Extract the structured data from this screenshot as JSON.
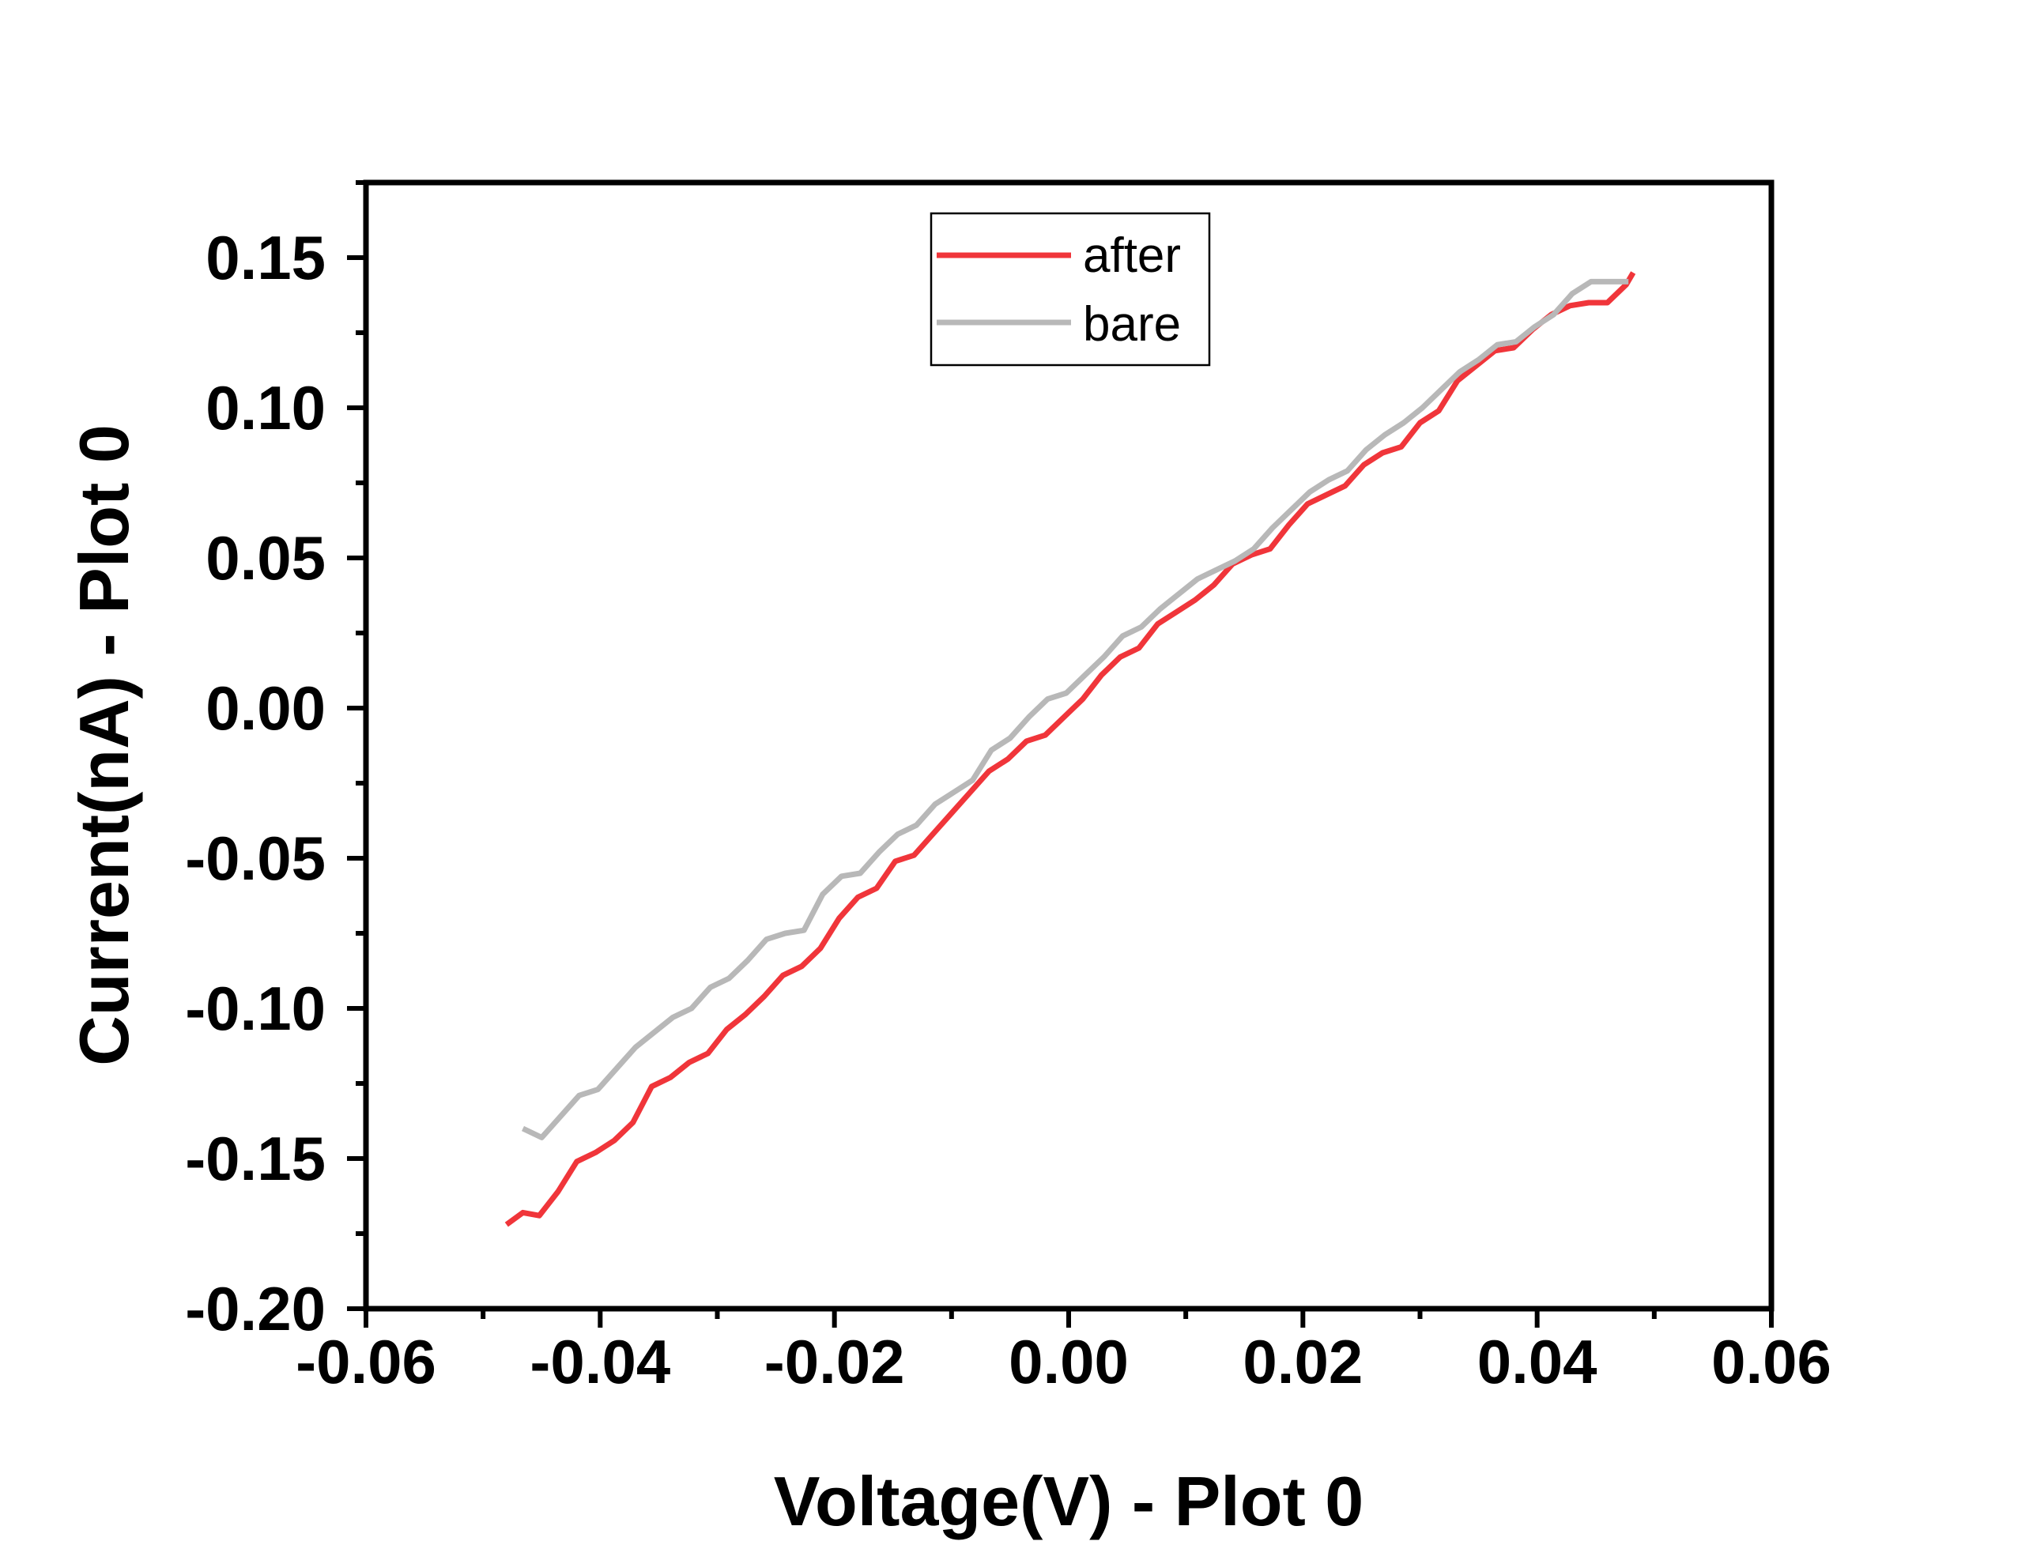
{
  "chart_data": {
    "type": "line",
    "title": "",
    "xlabel": "Voltage(V) - Plot 0",
    "ylabel": "Current(nA) - Plot 0",
    "xlim": [
      -0.06,
      0.06
    ],
    "ylim": [
      -0.2,
      0.175
    ],
    "x_ticks": [
      -0.06,
      -0.04,
      -0.02,
      0.0,
      0.02,
      0.04,
      0.06
    ],
    "x_tick_labels": [
      "-0.06",
      "-0.04",
      "-0.02",
      "0.00",
      "0.02",
      "0.04",
      "0.06"
    ],
    "y_ticks": [
      -0.2,
      -0.15,
      -0.1,
      -0.05,
      0.0,
      0.05,
      0.1,
      0.15
    ],
    "y_tick_labels": [
      "-0.20",
      "-0.15",
      "-0.10",
      "-0.05",
      "0.00",
      "0.05",
      "0.10",
      "0.15"
    ],
    "x_minor_step": 0.01,
    "y_minor_step": 0.025,
    "grid": false,
    "legend_position": "top-center",
    "series": [
      {
        "name": "after",
        "color": "#f0353a",
        "x": [
          -0.048,
          -0.0466,
          -0.0452,
          -0.0436,
          -0.042,
          -0.0404,
          -0.0388,
          -0.0372,
          -0.0356,
          -0.034,
          -0.0324,
          -0.0308,
          -0.0292,
          -0.0276,
          -0.026,
          -0.0244,
          -0.0228,
          -0.0212,
          -0.0196,
          -0.018,
          -0.0164,
          -0.0148,
          -0.0132,
          -0.0116,
          -0.01,
          -0.0084,
          -0.0068,
          -0.0052,
          -0.0036,
          -0.002,
          -0.0004,
          0.0012,
          0.0028,
          0.0044,
          0.006,
          0.0076,
          0.0092,
          0.0108,
          0.0124,
          0.014,
          0.0156,
          0.0172,
          0.0188,
          0.0204,
          0.022,
          0.0236,
          0.0252,
          0.0268,
          0.0284,
          0.03,
          0.0316,
          0.0332,
          0.0348,
          0.0364,
          0.038,
          0.0396,
          0.0412,
          0.0428,
          0.0444,
          0.046,
          0.0476,
          0.0482
        ],
        "values": [
          -0.172,
          -0.168,
          -0.169,
          -0.161,
          -0.151,
          -0.148,
          -0.144,
          -0.138,
          -0.126,
          -0.123,
          -0.118,
          -0.115,
          -0.107,
          -0.102,
          -0.096,
          -0.089,
          -0.086,
          -0.08,
          -0.07,
          -0.063,
          -0.06,
          -0.051,
          -0.049,
          -0.042,
          -0.035,
          -0.028,
          -0.021,
          -0.017,
          -0.011,
          -0.009,
          -0.003,
          0.003,
          0.011,
          0.017,
          0.02,
          0.028,
          0.032,
          0.036,
          0.041,
          0.048,
          0.051,
          0.053,
          0.061,
          0.068,
          0.071,
          0.074,
          0.081,
          0.085,
          0.087,
          0.095,
          0.099,
          0.109,
          0.114,
          0.119,
          0.12,
          0.126,
          0.131,
          0.134,
          0.135,
          0.135,
          0.141,
          0.145
        ]
      },
      {
        "name": "bare",
        "color": "#b8b8b8",
        "x": [
          -0.0466,
          -0.045,
          -0.0434,
          -0.0418,
          -0.0402,
          -0.0386,
          -0.037,
          -0.0354,
          -0.0338,
          -0.0322,
          -0.0306,
          -0.029,
          -0.0274,
          -0.0258,
          -0.0242,
          -0.0226,
          -0.021,
          -0.0194,
          -0.0178,
          -0.0162,
          -0.0146,
          -0.013,
          -0.0114,
          -0.0098,
          -0.0082,
          -0.0066,
          -0.005,
          -0.0034,
          -0.0018,
          -0.0002,
          0.0014,
          0.003,
          0.0046,
          0.0062,
          0.0078,
          0.0094,
          0.011,
          0.0126,
          0.0142,
          0.0158,
          0.0174,
          0.019,
          0.0206,
          0.0222,
          0.0238,
          0.0254,
          0.027,
          0.0286,
          0.0302,
          0.0318,
          0.0334,
          0.035,
          0.0366,
          0.0382,
          0.0398,
          0.0414,
          0.043,
          0.0446,
          0.0462,
          0.0478
        ],
        "values": [
          -0.14,
          -0.143,
          -0.136,
          -0.129,
          -0.127,
          -0.12,
          -0.113,
          -0.108,
          -0.103,
          -0.1,
          -0.093,
          -0.09,
          -0.084,
          -0.077,
          -0.075,
          -0.074,
          -0.062,
          -0.056,
          -0.055,
          -0.048,
          -0.042,
          -0.039,
          -0.032,
          -0.028,
          -0.024,
          -0.014,
          -0.01,
          -0.003,
          0.003,
          0.005,
          0.011,
          0.017,
          0.024,
          0.027,
          0.033,
          0.038,
          0.043,
          0.046,
          0.049,
          0.053,
          0.06,
          0.066,
          0.072,
          0.076,
          0.079,
          0.086,
          0.091,
          0.095,
          0.1,
          0.106,
          0.112,
          0.116,
          0.121,
          0.122,
          0.127,
          0.131,
          0.138,
          0.142,
          0.142,
          0.142
        ]
      }
    ]
  }
}
